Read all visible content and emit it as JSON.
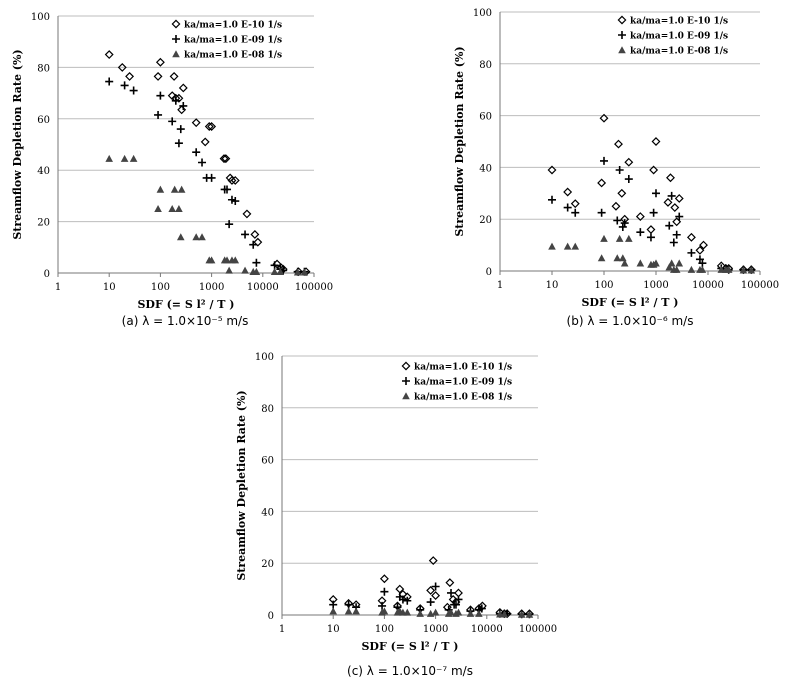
{
  "chart_data": [
    {
      "type": "scatter",
      "caption": "(a) λ = 1.0×10⁻⁵ m/s",
      "xlabel": "SDF (= S l² / T )",
      "ylabel": "Streamflow Depletion Rate (%)",
      "xscale": "log",
      "xlim": [
        1,
        100000
      ],
      "ylim": [
        0,
        100
      ],
      "xticks": [
        "1",
        "10",
        "100",
        "1000",
        "10000",
        "100000"
      ],
      "yticks": [
        "0",
        "20",
        "40",
        "60",
        "80",
        "100"
      ],
      "grid": "horizontal",
      "legend_position": "top-right",
      "series": [
        {
          "name": "ka/ma=1.0 E-10 1/s",
          "marker": "diamond",
          "points": [
            [
              10,
              85
            ],
            [
              18,
              80
            ],
            [
              25,
              76.5
            ],
            [
              90,
              76.5
            ],
            [
              100,
              82
            ],
            [
              170,
              69
            ],
            [
              185,
              76.5
            ],
            [
              200,
              68
            ],
            [
              230,
              68
            ],
            [
              260,
              63.5
            ],
            [
              280,
              72
            ],
            [
              500,
              58.5
            ],
            [
              750,
              51
            ],
            [
              900,
              57
            ],
            [
              1000,
              57
            ],
            [
              1750,
              44.5
            ],
            [
              1900,
              44.5
            ],
            [
              2300,
              37
            ],
            [
              2500,
              36
            ],
            [
              2900,
              36
            ],
            [
              4900,
              23
            ],
            [
              7000,
              15
            ],
            [
              8000,
              12
            ],
            [
              19000,
              3.5
            ],
            [
              23000,
              2
            ],
            [
              25000,
              1.5
            ],
            [
              50000,
              0.5
            ],
            [
              70000,
              0.5
            ]
          ]
        },
        {
          "name": "ka/ma=1.0 E-09 1/s",
          "marker": "plus",
          "points": [
            [
              10,
              74.5
            ],
            [
              20,
              73
            ],
            [
              30,
              71
            ],
            [
              90,
              61.5
            ],
            [
              100,
              69
            ],
            [
              170,
              59
            ],
            [
              200,
              67
            ],
            [
              230,
              50.5
            ],
            [
              250,
              56
            ],
            [
              280,
              65
            ],
            [
              500,
              47
            ],
            [
              650,
              43
            ],
            [
              800,
              37
            ],
            [
              1000,
              37
            ],
            [
              1800,
              32.5
            ],
            [
              2000,
              32.5
            ],
            [
              2200,
              19
            ],
            [
              2500,
              28.5
            ],
            [
              2900,
              28
            ],
            [
              4500,
              15
            ],
            [
              6500,
              11
            ],
            [
              7500,
              4
            ],
            [
              17000,
              3
            ],
            [
              22000,
              1.5
            ],
            [
              25000,
              1
            ],
            [
              48000,
              0.5
            ],
            [
              65000,
              0.5
            ]
          ]
        },
        {
          "name": "ka/ma=1.0 E-08 1/s",
          "marker": "triangle",
          "points": [
            [
              10,
              44.5
            ],
            [
              20,
              44.5
            ],
            [
              30,
              44.5
            ],
            [
              90,
              25
            ],
            [
              100,
              32.5
            ],
            [
              170,
              25
            ],
            [
              190,
              32.5
            ],
            [
              230,
              25
            ],
            [
              260,
              32.5
            ],
            [
              250,
              14
            ],
            [
              500,
              14
            ],
            [
              650,
              14
            ],
            [
              900,
              5
            ],
            [
              1000,
              5
            ],
            [
              1800,
              5
            ],
            [
              2000,
              5
            ],
            [
              2200,
              1
            ],
            [
              2500,
              5
            ],
            [
              2900,
              5
            ],
            [
              4500,
              1
            ],
            [
              6500,
              0.5
            ],
            [
              7500,
              0.5
            ],
            [
              17000,
              0.5
            ],
            [
              22000,
              0.5
            ],
            [
              48000,
              0.3
            ],
            [
              65000,
              0.3
            ]
          ]
        }
      ]
    },
    {
      "type": "scatter",
      "caption": "(b) λ = 1.0×10⁻⁶ m/s",
      "xlabel": "SDF (= S l² / T )",
      "ylabel": "Streamflow Depletion Rate (%)",
      "xscale": "log",
      "xlim": [
        1,
        100000
      ],
      "ylim": [
        0,
        100
      ],
      "xticks": [
        "1",
        "10",
        "100",
        "1000",
        "10000",
        "100000"
      ],
      "yticks": [
        "0",
        "20",
        "40",
        "60",
        "80",
        "100"
      ],
      "grid": "horizontal",
      "legend_position": "top-right",
      "series": [
        {
          "name": "ka/ma=1.0 E-10 1/s",
          "marker": "diamond",
          "points": [
            [
              10,
              39
            ],
            [
              20,
              30.5
            ],
            [
              28,
              26
            ],
            [
              90,
              34
            ],
            [
              100,
              59
            ],
            [
              170,
              25
            ],
            [
              190,
              49
            ],
            [
              220,
              30
            ],
            [
              250,
              20
            ],
            [
              300,
              42
            ],
            [
              500,
              21
            ],
            [
              800,
              16
            ],
            [
              900,
              39
            ],
            [
              1000,
              50
            ],
            [
              1700,
              26.5
            ],
            [
              1900,
              36
            ],
            [
              2300,
              24.5
            ],
            [
              2500,
              19
            ],
            [
              2800,
              28
            ],
            [
              4800,
              13
            ],
            [
              7000,
              8
            ],
            [
              8200,
              10
            ],
            [
              18000,
              2
            ],
            [
              22000,
              1
            ],
            [
              25000,
              1
            ],
            [
              48000,
              0.5
            ],
            [
              68000,
              0.5
            ]
          ]
        },
        {
          "name": "ka/ma=1.0 E-09 1/s",
          "marker": "plus",
          "points": [
            [
              10,
              27.5
            ],
            [
              20,
              24.5
            ],
            [
              28,
              22.5
            ],
            [
              90,
              22.5
            ],
            [
              100,
              42.5
            ],
            [
              180,
              19.5
            ],
            [
              200,
              39
            ],
            [
              230,
              17
            ],
            [
              250,
              18.5
            ],
            [
              300,
              35.5
            ],
            [
              500,
              15
            ],
            [
              800,
              13
            ],
            [
              900,
              22.5
            ],
            [
              1000,
              30
            ],
            [
              1800,
              17.5
            ],
            [
              2000,
              29
            ],
            [
              2200,
              11
            ],
            [
              2500,
              14
            ],
            [
              2800,
              21
            ],
            [
              4800,
              7
            ],
            [
              7000,
              4.5
            ],
            [
              7800,
              3
            ],
            [
              18000,
              1
            ],
            [
              22000,
              1
            ],
            [
              25000,
              0.5
            ],
            [
              48000,
              0.5
            ],
            [
              68000,
              0.5
            ]
          ]
        },
        {
          "name": "ka/ma=1.0 E-08 1/s",
          "marker": "triangle",
          "points": [
            [
              10,
              9.5
            ],
            [
              20,
              9.5
            ],
            [
              28,
              9.5
            ],
            [
              90,
              5
            ],
            [
              100,
              12.5
            ],
            [
              180,
              5
            ],
            [
              200,
              12.5
            ],
            [
              230,
              5
            ],
            [
              250,
              3
            ],
            [
              300,
              12.5
            ],
            [
              500,
              3
            ],
            [
              800,
              2.5
            ],
            [
              900,
              2.5
            ],
            [
              1000,
              3
            ],
            [
              1800,
              1.5
            ],
            [
              2000,
              3
            ],
            [
              2200,
              0.5
            ],
            [
              2500,
              0.5
            ],
            [
              2800,
              3
            ],
            [
              4800,
              0.5
            ],
            [
              7000,
              0.5
            ],
            [
              7800,
              0.5
            ],
            [
              18000,
              0.5
            ],
            [
              22000,
              0.5
            ],
            [
              25000,
              0.5
            ],
            [
              48000,
              0.3
            ],
            [
              68000,
              0.3
            ]
          ]
        }
      ]
    },
    {
      "type": "scatter",
      "caption": "(c) λ = 1.0×10⁻⁷ m/s",
      "xlabel": "SDF (= S l² / T )",
      "ylabel": "Streamflow Depletion Rate (%)",
      "xscale": "log",
      "xlim": [
        1,
        100000
      ],
      "ylim": [
        0,
        100
      ],
      "xticks": [
        "1",
        "10",
        "100",
        "1000",
        "10000",
        "100000"
      ],
      "yticks": [
        "0",
        "20",
        "40",
        "60",
        "80",
        "100"
      ],
      "grid": "horizontal",
      "legend_position": "top-right",
      "series": [
        {
          "name": "ka/ma=1.0 E-10 1/s",
          "marker": "diamond",
          "points": [
            [
              10,
              6
            ],
            [
              20,
              4.5
            ],
            [
              28,
              4
            ],
            [
              90,
              5.5
            ],
            [
              100,
              14
            ],
            [
              180,
              3.5
            ],
            [
              200,
              10
            ],
            [
              230,
              8
            ],
            [
              280,
              7
            ],
            [
              500,
              2.5
            ],
            [
              800,
              9.5
            ],
            [
              900,
              21
            ],
            [
              1000,
              7.5
            ],
            [
              1700,
              3
            ],
            [
              1900,
              12.5
            ],
            [
              2200,
              6
            ],
            [
              2500,
              5
            ],
            [
              2800,
              8.5
            ],
            [
              4800,
              2
            ],
            [
              7000,
              2.5
            ],
            [
              8200,
              3.5
            ],
            [
              18000,
              1
            ],
            [
              22000,
              0.5
            ],
            [
              25000,
              0.5
            ],
            [
              48000,
              0.5
            ],
            [
              68000,
              0.5
            ]
          ]
        },
        {
          "name": "ka/ma=1.0 E-09 1/s",
          "marker": "plus",
          "points": [
            [
              10,
              4
            ],
            [
              20,
              4
            ],
            [
              28,
              3
            ],
            [
              90,
              3.5
            ],
            [
              100,
              9
            ],
            [
              180,
              3
            ],
            [
              200,
              7
            ],
            [
              230,
              6
            ],
            [
              280,
              5.5
            ],
            [
              500,
              2
            ],
            [
              800,
              5
            ],
            [
              1000,
              11
            ],
            [
              1800,
              2
            ],
            [
              2000,
              8.5
            ],
            [
              2300,
              4
            ],
            [
              2500,
              4
            ],
            [
              2800,
              6
            ],
            [
              4800,
              1.5
            ],
            [
              7000,
              2
            ],
            [
              8000,
              2.5
            ],
            [
              18000,
              0.5
            ],
            [
              22000,
              0.5
            ],
            [
              25000,
              0.5
            ],
            [
              48000,
              0.3
            ],
            [
              68000,
              0.3
            ]
          ]
        },
        {
          "name": "ka/ma=1.0 E-08 1/s",
          "marker": "triangle",
          "points": [
            [
              10,
              1.5
            ],
            [
              20,
              1.5
            ],
            [
              28,
              1.5
            ],
            [
              90,
              1
            ],
            [
              100,
              1.5
            ],
            [
              180,
              1
            ],
            [
              200,
              1.5
            ],
            [
              230,
              1
            ],
            [
              280,
              1
            ],
            [
              500,
              0.5
            ],
            [
              800,
              0.5
            ],
            [
              1000,
              1
            ],
            [
              1800,
              0.5
            ],
            [
              2000,
              1
            ],
            [
              2500,
              0.5
            ],
            [
              2800,
              1
            ],
            [
              4800,
              0.5
            ],
            [
              7000,
              0.5
            ],
            [
              18000,
              0.3
            ],
            [
              22000,
              0.3
            ],
            [
              48000,
              0.2
            ],
            [
              68000,
              0.2
            ]
          ]
        }
      ]
    }
  ]
}
